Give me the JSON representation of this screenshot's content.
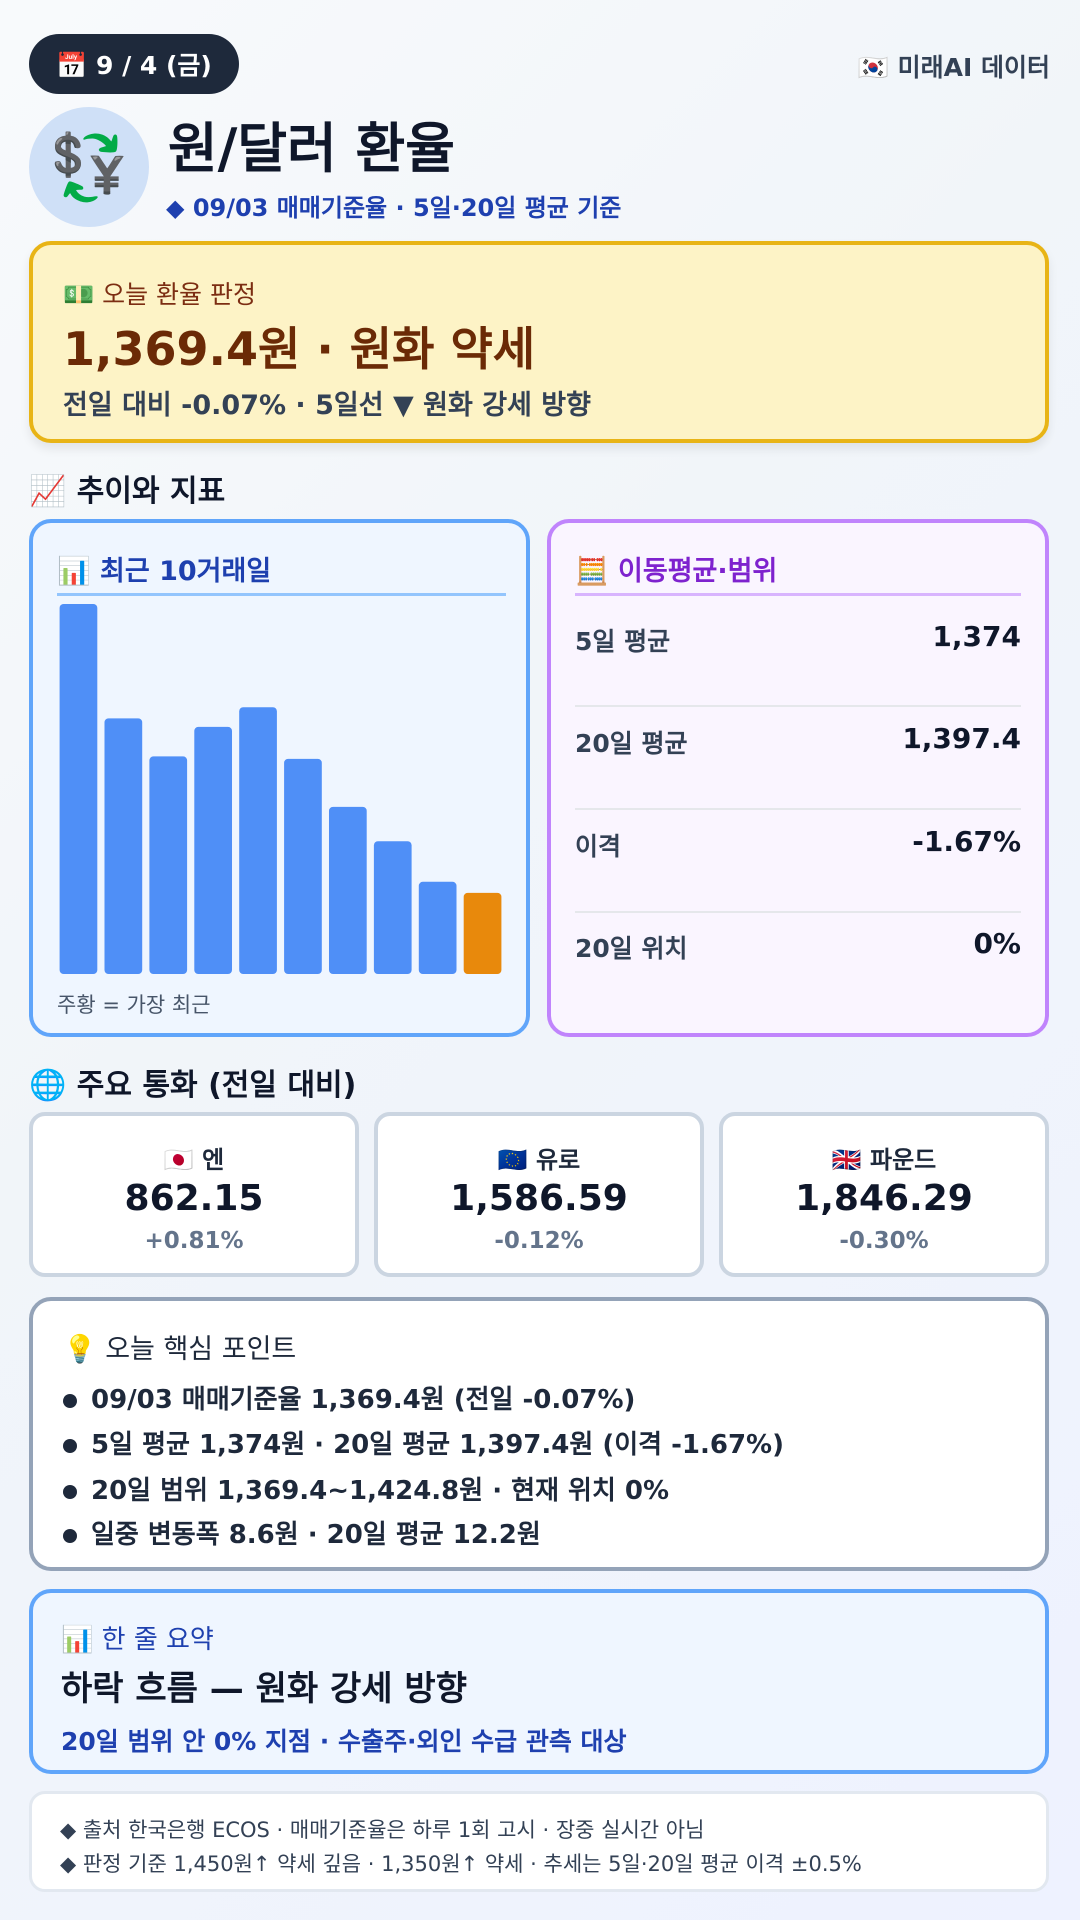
{
  "header": {
    "date_badge": "📅 9 / 4 (금)",
    "source_badge": "🇰🇷 미래AI 데이터",
    "icon": "💱",
    "title": "원/달러 환율",
    "subtitle": "◆ 09/03 매매기준율 · 5일·20일 평균 기준"
  },
  "verdict": {
    "label": "💵 오늘 환율 판정",
    "headline": "1,369.4원 · 원화 약세",
    "detail": "전일 대비 -0.07% · 5일선 ▼ 원화 강세 방향"
  },
  "trend_section": "📈 추이와 지표",
  "chart_data": {
    "type": "bar",
    "title": "📊 최근 10거래일",
    "categories": [
      null,
      null,
      null,
      null,
      null,
      null,
      null,
      null,
      null,
      null
    ],
    "values": [
      1392.9,
      1383.6,
      1380.5,
      1382.9,
      1384.5,
      1380.3,
      1376.4,
      1373.6,
      1370.3,
      1369.4
    ],
    "color": "#4f8ff7",
    "highlight_color": "#e8890c",
    "ylim": [
      1362.8,
      1392.9
    ],
    "caption": "주황 = 가장 최근"
  },
  "ma_panel": {
    "title": "🧮 이동평균·범위",
    "rows": [
      {
        "label": "5일 평균",
        "value": "1,374"
      },
      {
        "label": "20일 평균",
        "value": "1,397.4"
      },
      {
        "label": "이격",
        "value": "-1.67%"
      },
      {
        "label": "20일 위치",
        "value": "0%"
      }
    ]
  },
  "currencies": {
    "title": "🌐 주요 통화 (전일 대비)",
    "items": [
      {
        "name": "🇯🇵 엔",
        "rate": "862.15",
        "change": "+0.81%"
      },
      {
        "name": "🇪🇺 유로",
        "rate": "1,586.59",
        "change": "-0.12%"
      },
      {
        "name": "🇬🇧 파운드",
        "rate": "1,846.29",
        "change": "-0.30%"
      }
    ]
  },
  "key_points": {
    "title": "💡 오늘 핵심 포인트",
    "items": [
      "09/03 매매기준율 1,369.4원 (전일 -0.07%)",
      "5일 평균 1,374원 · 20일 평균 1,397.4원 (이격 -1.67%)",
      "20일 범위 1,369.4~1,424.8원 · 현재 위치 0%",
      "일중 변동폭 8.6원 · 20일 평균 12.2원"
    ]
  },
  "summary": {
    "label": "📊 한 줄 요약",
    "headline": "하락 흐름 — 원화 강세 방향",
    "detail": "20일 범위 안 0% 지점 · 수출주·외인 수급 관측 대상"
  },
  "footer": {
    "lines": [
      "◆ 출처 한국은행 ECOS · 매매기준율은 하루 1회 고시 · 장중 실시간 아님",
      "◆ 판정 기준 1,450원↑ 약세 깊음 · 1,350원↑ 약세 · 추세는 5일·20일 평균 이격 ±0.5%"
    ]
  }
}
